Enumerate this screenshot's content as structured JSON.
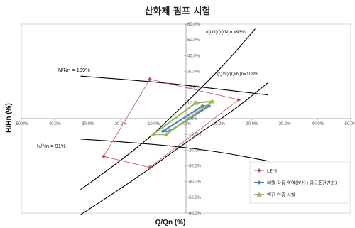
{
  "chart_data": {
    "type": "scatter",
    "title": "산화제 펌프 시험",
    "xlabel": "Q/Qn (%)",
    "ylabel": "H/Hn (%)",
    "xlim": [
      -50,
      50
    ],
    "ylim": [
      -60,
      60
    ],
    "x_ticks": [
      "-50.0%",
      "-40.0%",
      "-30.0%",
      "-20.0%",
      "-10.0%",
      "0.0%",
      "10.0%",
      "20.0%",
      "30.0%",
      "40.0%",
      "50.0%"
    ],
    "y_ticks": [
      "60.0%",
      "50.0%",
      "40.0%",
      "30.0%",
      "20.0%",
      "10.0%",
      "0.0%",
      "-10.0%",
      "-20.0%",
      "-30.0%",
      "-40.0%",
      "-50.0%",
      "-60.0%"
    ],
    "grid": false,
    "legend_position": "bottom-right",
    "series": [
      {
        "name": "LE-5",
        "color": "#c0504d",
        "marker": "diamond",
        "closed": true,
        "points": [
          [
            -11,
            25
          ],
          [
            16,
            12
          ],
          [
            -11,
            -31
          ],
          [
            -25,
            -24
          ]
        ]
      },
      {
        "name": "비행 작동 영역(분산+입구조건변화)",
        "color": "#4f81bd",
        "marker": "diamond",
        "closed": true,
        "points": [
          [
            -7,
            -8
          ],
          [
            5,
            8
          ],
          [
            7,
            8
          ],
          [
            -5,
            -8
          ]
        ]
      },
      {
        "name": "엔진 인증 시험",
        "color": "#9bbb59",
        "marker": "triangle",
        "closed": true,
        "points": [
          [
            -10,
            -10
          ],
          [
            3,
            10
          ],
          [
            8,
            11
          ],
          [
            -6,
            -10
          ]
        ]
      }
    ],
    "reference_curves": [
      {
        "label": "N/Nn = 109%",
        "color": "#000000",
        "points": [
          [
            -32,
            27
          ],
          [
            -10,
            23.5
          ],
          [
            5,
            20
          ],
          [
            25,
            15
          ]
        ]
      },
      {
        "label": "N/Nn = 91%",
        "color": "#000000",
        "points": [
          [
            -32,
            -13
          ],
          [
            -10,
            -16
          ],
          [
            10,
            -21
          ],
          [
            25,
            -27
          ]
        ]
      },
      {
        "label": "(Q/N)/(Q/N)n =93%",
        "color": "#000000",
        "points": [
          [
            -32,
            -45
          ],
          [
            -15,
            -20
          ],
          [
            0,
            10
          ],
          [
            12,
            35
          ],
          [
            21,
            57
          ]
        ]
      },
      {
        "label": "(Q/N)/(Q/N)n=108%",
        "color": "#000000",
        "points": [
          [
            -32,
            -61
          ],
          [
            -15,
            -38
          ],
          [
            0,
            -15
          ],
          [
            15,
            6
          ],
          [
            25,
            23
          ]
        ]
      }
    ]
  }
}
